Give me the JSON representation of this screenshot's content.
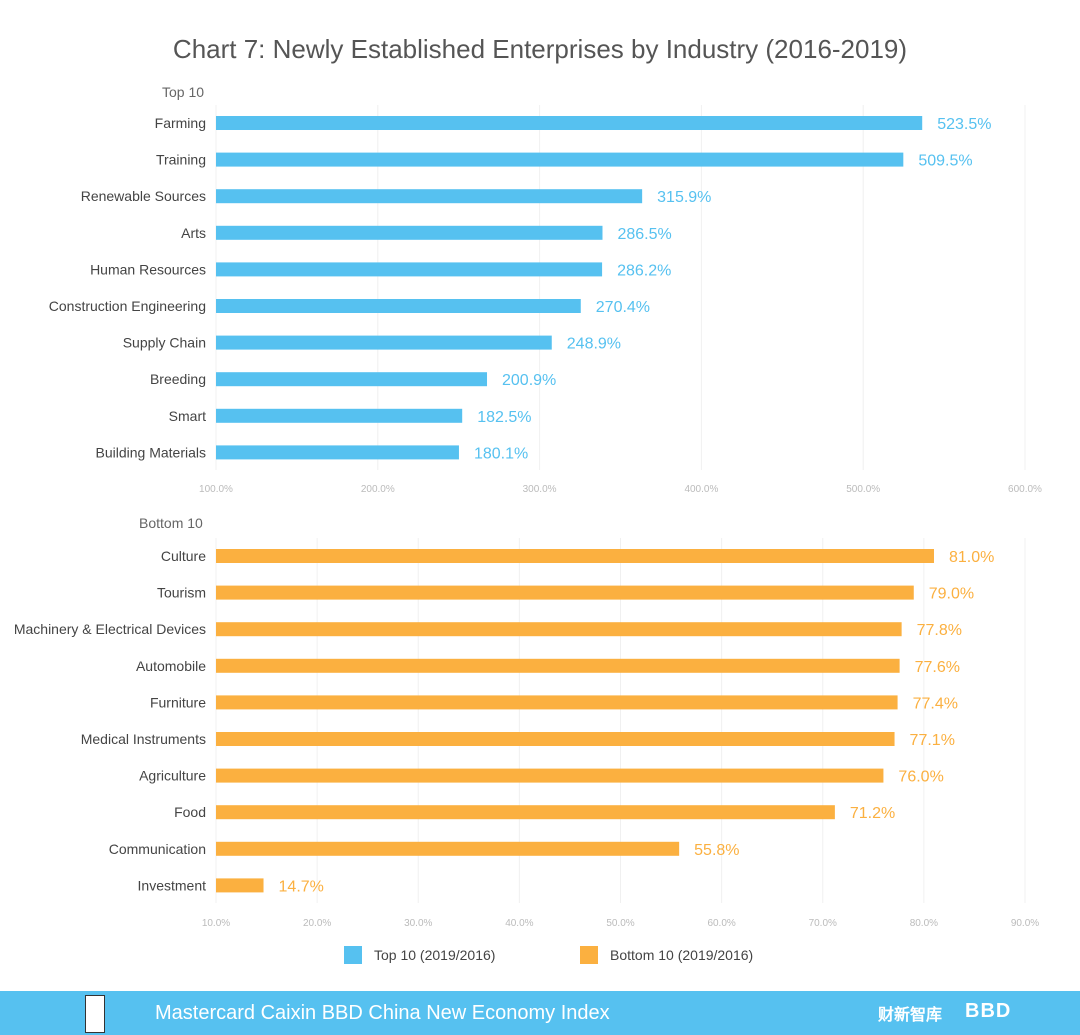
{
  "chart_data": [
    {
      "type": "bar",
      "orientation": "horizontal",
      "section_label": "Top 10",
      "series_name": "Top 10 (2019/2016)",
      "color": "#56c1f0",
      "categories": [
        "Farming",
        "Training",
        "Renewable Sources",
        "Arts",
        "Human Resources",
        "Construction Engineering",
        "Supply Chain",
        "Breeding",
        "Smart",
        "Building Materials"
      ],
      "values": [
        523.5,
        509.5,
        315.9,
        286.5,
        286.2,
        270.4,
        248.9,
        200.9,
        182.5,
        180.1
      ],
      "labels": [
        "523.5%",
        "509.5%",
        "315.9%",
        "286.5%",
        "286.2%",
        "270.4%",
        "248.9%",
        "200.9%",
        "182.5%",
        "180.1%"
      ],
      "ticks": [
        "100.0%",
        "200.0%",
        "300.0%",
        "400.0%",
        "500.0%",
        "600.0%"
      ]
    },
    {
      "type": "bar",
      "orientation": "horizontal",
      "section_label": "Bottom 10",
      "series_name": "Bottom 10 (2019/2016)",
      "color": "#fbb040",
      "categories": [
        "Culture",
        "Tourism",
        "Machinery & Electrical Devices",
        "Automobile",
        "Furniture",
        "Medical Instruments",
        "Agriculture",
        "Food",
        "Communication",
        "Investment"
      ],
      "values": [
        81.0,
        79.0,
        77.8,
        77.6,
        77.4,
        77.1,
        76.0,
        71.2,
        55.8,
        14.7
      ],
      "labels": [
        "81.0%",
        "79.0%",
        "77.8%",
        "77.6%",
        "77.4%",
        "77.1%",
        "76.0%",
        "71.2%",
        "55.8%",
        "14.7%"
      ],
      "ticks": [
        "10.0%",
        "20.0%",
        "30.0%",
        "40.0%",
        "50.0%",
        "60.0%",
        "70.0%",
        "80.0%",
        "90.0%"
      ],
      "xlim": [
        10,
        90
      ]
    }
  ],
  "title": "Chart 7: Newly Established Enterprises by Industry (2016-2019)",
  "footer": {
    "title": "Mastercard Caixin BBD China New Economy Index",
    "logo_cn": "财新智库",
    "logo_bbd": "BBD"
  }
}
